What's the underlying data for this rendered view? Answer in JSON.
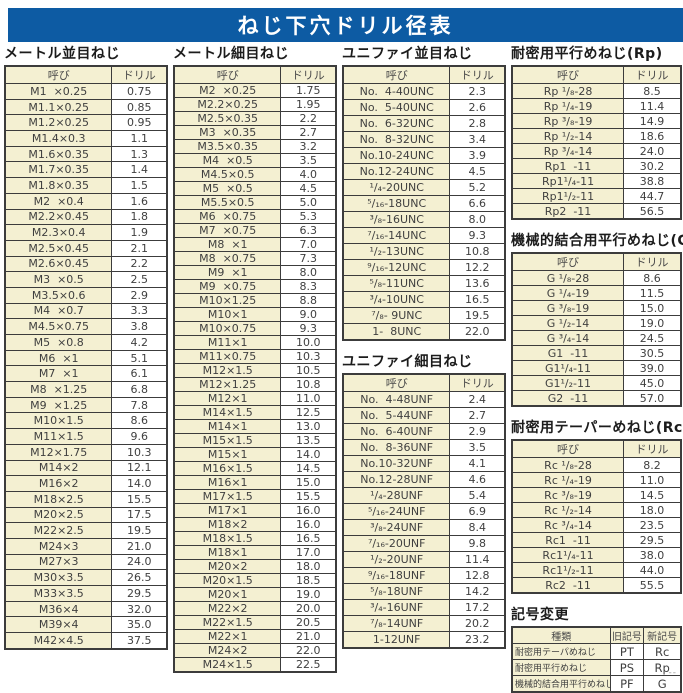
{
  "header": {
    "title": "ねじ下穴ドリル径表"
  },
  "colors": {
    "accent_blue": "#0d5ba3",
    "cell_cream": "#f4f0d2",
    "border": "#3c3c3c"
  },
  "footer": {
    "page_mark": "--"
  },
  "tables": {
    "metric_coarse": {
      "title": "メートル並目ねじ",
      "col_headers": [
        "呼び",
        "ドリル"
      ],
      "rows": [
        [
          "M1  ×0.25",
          "0.75"
        ],
        [
          "M1.1×0.25",
          "0.85"
        ],
        [
          "M1.2×0.25",
          "0.95"
        ],
        [
          "M1.4×0.3",
          "1.1"
        ],
        [
          "M1.6×0.35",
          "1.3"
        ],
        [
          "M1.7×0.35",
          "1.4"
        ],
        [
          "M1.8×0.35",
          "1.5"
        ],
        [
          "M2  ×0.4",
          "1.6"
        ],
        [
          "M2.2×0.45",
          "1.8"
        ],
        [
          "M2.3×0.4",
          "1.9"
        ],
        [
          "M2.5×0.45",
          "2.1"
        ],
        [
          "M2.6×0.45",
          "2.2"
        ],
        [
          "M3  ×0.5",
          "2.5"
        ],
        [
          "M3.5×0.6",
          "2.9"
        ],
        [
          "M4  ×0.7",
          "3.3"
        ],
        [
          "M4.5×0.75",
          "3.8"
        ],
        [
          "M5  ×0.8",
          "4.2"
        ],
        [
          "M6  ×1",
          "5.1"
        ],
        [
          "M7  ×1",
          "6.1"
        ],
        [
          "M8  ×1.25",
          "6.8"
        ],
        [
          "M9  ×1.25",
          "7.8"
        ],
        [
          "M10×1.5",
          "8.6"
        ],
        [
          "M11×1.5",
          "9.6"
        ],
        [
          "M12×1.75",
          "10.3"
        ],
        [
          "M14×2",
          "12.1"
        ],
        [
          "M16×2",
          "14.0"
        ],
        [
          "M18×2.5",
          "15.5"
        ],
        [
          "M20×2.5",
          "17.5"
        ],
        [
          "M22×2.5",
          "19.5"
        ],
        [
          "M24×3",
          "21.0"
        ],
        [
          "M27×3",
          "24.0"
        ],
        [
          "M30×3.5",
          "26.5"
        ],
        [
          "M33×3.5",
          "29.5"
        ],
        [
          "M36×4",
          "32.0"
        ],
        [
          "M39×4",
          "35.0"
        ],
        [
          "M42×4.5",
          "37.5"
        ]
      ]
    },
    "metric_fine": {
      "title": "メートル細目ねじ",
      "col_headers": [
        "呼び",
        "ドリル"
      ],
      "rows": [
        [
          "M2  ×0.25",
          "1.75"
        ],
        [
          "M2.2×0.25",
          "1.95"
        ],
        [
          "M2.5×0.35",
          "2.2"
        ],
        [
          "M3  ×0.35",
          "2.7"
        ],
        [
          "M3.5×0.35",
          "3.2"
        ],
        [
          "M4  ×0.5",
          "3.5"
        ],
        [
          "M4.5×0.5",
          "4.0"
        ],
        [
          "M5  ×0.5",
          "4.5"
        ],
        [
          "M5.5×0.5",
          "5.0"
        ],
        [
          "M6  ×0.75",
          "5.3"
        ],
        [
          "M7  ×0.75",
          "6.3"
        ],
        [
          "M8  ×1",
          "7.0"
        ],
        [
          "M8  ×0.75",
          "7.3"
        ],
        [
          "M9  ×1",
          "8.0"
        ],
        [
          "M9  ×0.75",
          "8.3"
        ],
        [
          "M10×1.25",
          "8.8"
        ],
        [
          "M10×1",
          "9.0"
        ],
        [
          "M10×0.75",
          "9.3"
        ],
        [
          "M11×1",
          "10.0"
        ],
        [
          "M11×0.75",
          "10.3"
        ],
        [
          "M12×1.5",
          "10.5"
        ],
        [
          "M12×1.25",
          "10.8"
        ],
        [
          "M12×1",
          "11.0"
        ],
        [
          "M14×1.5",
          "12.5"
        ],
        [
          "M14×1",
          "13.0"
        ],
        [
          "M15×1.5",
          "13.5"
        ],
        [
          "M15×1",
          "14.0"
        ],
        [
          "M16×1.5",
          "14.5"
        ],
        [
          "M16×1",
          "15.0"
        ],
        [
          "M17×1.5",
          "15.5"
        ],
        [
          "M17×1",
          "16.0"
        ],
        [
          "M18×2",
          "16.0"
        ],
        [
          "M18×1.5",
          "16.5"
        ],
        [
          "M18×1",
          "17.0"
        ],
        [
          "M20×2",
          "18.0"
        ],
        [
          "M20×1.5",
          "18.5"
        ],
        [
          "M20×1",
          "19.0"
        ],
        [
          "M22×2",
          "20.0"
        ],
        [
          "M22×1.5",
          "20.5"
        ],
        [
          "M22×1",
          "21.0"
        ],
        [
          "M24×2",
          "22.0"
        ],
        [
          "M24×1.5",
          "22.5"
        ]
      ]
    },
    "unified_coarse": {
      "title": "ユニファイ並目ねじ",
      "col_headers": [
        "呼び",
        "ドリル"
      ],
      "rows": [
        [
          "No.  4-40UNC",
          "2.3"
        ],
        [
          "No.  5-40UNC",
          "2.6"
        ],
        [
          "No.  6-32UNC",
          "2.8"
        ],
        [
          "No.  8-32UNC",
          "3.4"
        ],
        [
          "No.10-24UNC",
          "3.9"
        ],
        [
          "No.12-24UNC",
          "4.5"
        ],
        [
          "¹/₄-20UNC",
          "5.2"
        ],
        [
          "⁵/₁₆-18UNC",
          "6.6"
        ],
        [
          "³/₈-16UNC",
          "8.0"
        ],
        [
          "⁷/₁₆-14UNC",
          "9.3"
        ],
        [
          "¹/₂-13UNC",
          "10.8"
        ],
        [
          "⁹/₁₆-12UNC",
          "12.2"
        ],
        [
          "⁵/₈-11UNC",
          "13.6"
        ],
        [
          "³/₄-10UNC",
          "16.5"
        ],
        [
          "⁷/₈- 9UNC",
          "19.5"
        ],
        [
          "1-  8UNC",
          "22.0"
        ]
      ]
    },
    "unified_fine": {
      "title": "ユニファイ細目ねじ",
      "col_headers": [
        "呼び",
        "ドリル"
      ],
      "rows": [
        [
          "No.  4-48UNF",
          "2.4"
        ],
        [
          "No.  5-44UNF",
          "2.7"
        ],
        [
          "No.  6-40UNF",
          "2.9"
        ],
        [
          "No.  8-36UNF",
          "3.5"
        ],
        [
          "No.10-32UNF",
          "4.1"
        ],
        [
          "No.12-28UNF",
          "4.6"
        ],
        [
          "¹/₄-28UNF",
          "5.4"
        ],
        [
          "⁵/₁₆-24UNF",
          "6.9"
        ],
        [
          "³/₈-24UNF",
          "8.4"
        ],
        [
          "⁷/₁₆-20UNF",
          "9.8"
        ],
        [
          "¹/₂-20UNF",
          "11.4"
        ],
        [
          "⁹/₁₆-18UNF",
          "12.8"
        ],
        [
          "⁵/₈-18UNF",
          "14.2"
        ],
        [
          "³/₄-16UNF",
          "17.2"
        ],
        [
          "⁷/₈-14UNF",
          "20.2"
        ],
        [
          "1-12UNF",
          "23.2"
        ]
      ]
    },
    "rp": {
      "title": "耐密用平行めねじ(Rp)",
      "col_headers": [
        "呼び",
        "ドリル"
      ],
      "rows": [
        [
          "Rp ¹/₈-28",
          "8.5"
        ],
        [
          "Rp ¹/₄-19",
          "11.4"
        ],
        [
          "Rp ³/₈-19",
          "14.9"
        ],
        [
          "Rp ¹/₂-14",
          "18.6"
        ],
        [
          "Rp ³/₄-14",
          "24.0"
        ],
        [
          "Rp1  -11",
          "30.2"
        ],
        [
          "Rp1¹/₄-11",
          "38.8"
        ],
        [
          "Rp1¹/₂-11",
          "44.7"
        ],
        [
          "Rp2  -11",
          "56.5"
        ]
      ]
    },
    "g": {
      "title": "機械的結合用平行めねじ(G)",
      "col_headers": [
        "呼び",
        "ドリル"
      ],
      "rows": [
        [
          "G ¹/₈-28",
          "8.6"
        ],
        [
          "G ¹/₄-19",
          "11.5"
        ],
        [
          "G ³/₈-19",
          "15.0"
        ],
        [
          "G ¹/₂-14",
          "19.0"
        ],
        [
          "G ³/₄-14",
          "24.5"
        ],
        [
          "G1  -11",
          "30.5"
        ],
        [
          "G1¹/₄-11",
          "39.0"
        ],
        [
          "G1¹/₂-11",
          "45.0"
        ],
        [
          "G2  -11",
          "57.0"
        ]
      ]
    },
    "rc": {
      "title": "耐密用テーパーめねじ(Rc)",
      "col_headers": [
        "呼び",
        "ドリル"
      ],
      "rows": [
        [
          "Rc ¹/₈-28",
          "8.2"
        ],
        [
          "Rc ¹/₄-19",
          "11.0"
        ],
        [
          "Rc ³/₈-19",
          "14.5"
        ],
        [
          "Rc ¹/₂-14",
          "18.0"
        ],
        [
          "Rc ³/₄-14",
          "23.5"
        ],
        [
          "Rc1  -11",
          "29.5"
        ],
        [
          "Rc1¹/₄-11",
          "38.0"
        ],
        [
          "Rc1¹/₂-11",
          "44.0"
        ],
        [
          "Rc2  -11",
          "55.5"
        ]
      ]
    },
    "symbol_change": {
      "title": "記号変更",
      "col_headers": [
        "種類",
        "旧記号",
        "新記号"
      ],
      "rows": [
        [
          "耐密用テーパめねじ",
          "PT",
          "Rc"
        ],
        [
          "耐密用平行めねじ",
          "PS",
          "Rp"
        ],
        [
          "機械的結合用平行めねじ",
          "PF",
          "G"
        ]
      ]
    }
  }
}
